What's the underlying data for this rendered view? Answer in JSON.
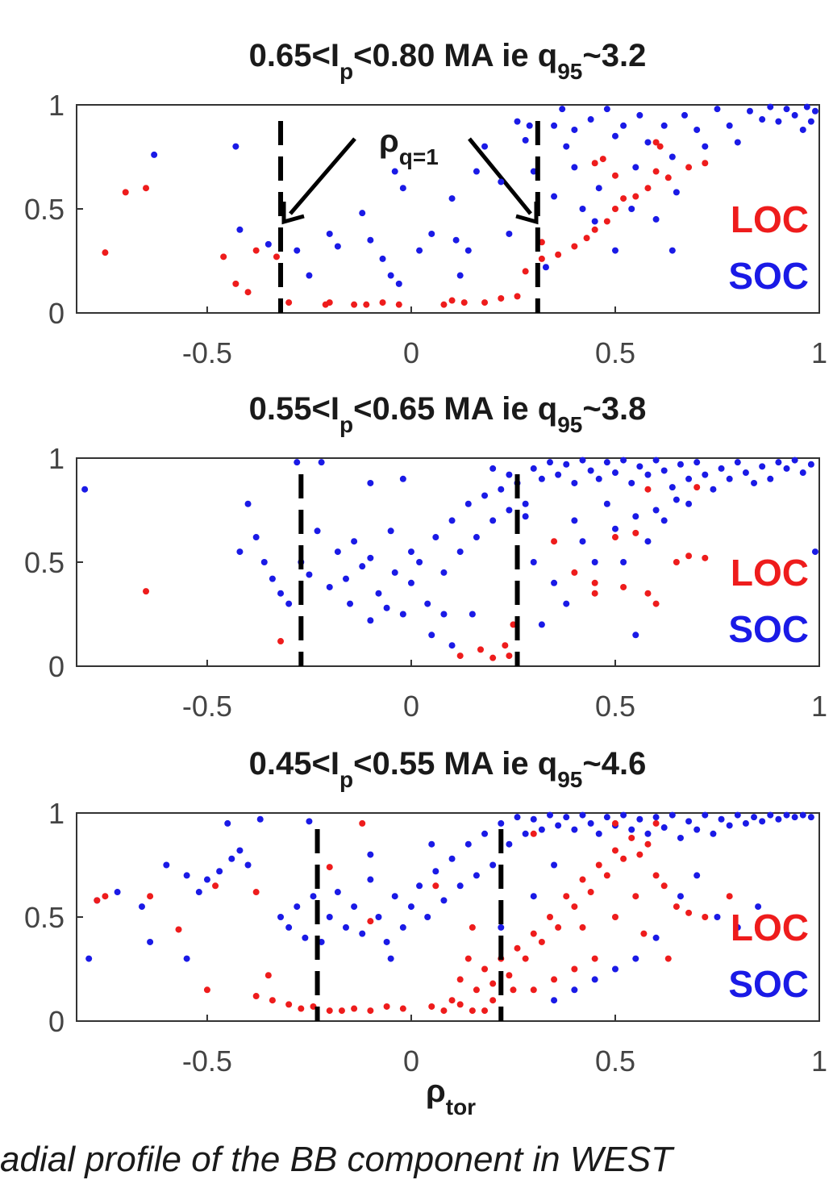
{
  "chart_data": [
    {
      "type": "scatter",
      "title": [
        {
          "text": "0.65<I"
        },
        {
          "text": "p",
          "sub": true
        },
        {
          "text": "<0.80 MA ie q"
        },
        {
          "text": "95",
          "sub": true
        },
        {
          "text": "~3.2"
        }
      ],
      "annotation": [
        {
          "text": "ρ"
        },
        {
          "text": "q=1",
          "sub": true
        }
      ],
      "xlim": [
        -0.82,
        1
      ],
      "ylim": [
        0,
        1
      ],
      "xticks": [
        -0.5,
        0,
        0.5,
        1
      ],
      "yticks": [
        0,
        0.5,
        1
      ],
      "legend": "right",
      "vlines": [
        -0.32,
        0.31
      ],
      "series": [
        {
          "name": "LOC",
          "color": "#ee1c1c",
          "x": [
            -0.75,
            -0.7,
            -0.65,
            -0.46,
            -0.43,
            -0.4,
            -0.38,
            -0.33,
            -0.3,
            -0.2,
            -0.21,
            -0.14,
            -0.11,
            -0.07,
            -0.03,
            0.08,
            0.1,
            0.13,
            0.18,
            0.22,
            0.26,
            0.28,
            0.32,
            0.36,
            0.4,
            0.43,
            0.45,
            0.48,
            0.5,
            0.52,
            0.55,
            0.58,
            0.45,
            0.47,
            0.5,
            0.6,
            0.63,
            0.68,
            0.72,
            0.6,
            0.61,
            0.32
          ],
          "y": [
            0.29,
            0.58,
            0.6,
            0.27,
            0.14,
            0.1,
            0.3,
            0.27,
            0.05,
            0.05,
            0.04,
            0.04,
            0.04,
            0.05,
            0.04,
            0.04,
            0.06,
            0.05,
            0.05,
            0.07,
            0.08,
            0.2,
            0.26,
            0.28,
            0.32,
            0.36,
            0.4,
            0.44,
            0.5,
            0.55,
            0.56,
            0.6,
            0.72,
            0.74,
            0.66,
            0.68,
            0.65,
            0.7,
            0.72,
            0.82,
            0.8,
            0.34
          ]
        },
        {
          "name": "SOC",
          "color": "#1a1ae6",
          "x": [
            -0.63,
            -0.43,
            -0.42,
            -0.35,
            -0.28,
            -0.25,
            -0.2,
            -0.18,
            -0.12,
            -0.1,
            -0.07,
            -0.05,
            -0.03,
            -0.02,
            -0.04,
            0.02,
            0.05,
            0.1,
            0.11,
            0.12,
            0.14,
            0.16,
            0.18,
            0.22,
            0.24,
            0.26,
            0.28,
            0.3,
            0.33,
            0.35,
            0.35,
            0.37,
            0.38,
            0.4,
            0.4,
            0.42,
            0.44,
            0.46,
            0.48,
            0.5,
            0.52,
            0.54,
            0.55,
            0.56,
            0.58,
            0.6,
            0.62,
            0.64,
            0.65,
            0.67,
            0.7,
            0.72,
            0.75,
            0.78,
            0.8,
            0.83,
            0.86,
            0.88,
            0.9,
            0.92,
            0.94,
            0.96,
            0.97,
            0.98,
            0.99,
            0.64,
            0.5,
            0.45,
            0.29
          ],
          "y": [
            0.76,
            0.8,
            0.4,
            0.33,
            0.3,
            0.18,
            0.38,
            0.32,
            0.48,
            0.35,
            0.26,
            0.18,
            0.14,
            0.6,
            0.68,
            0.3,
            0.38,
            0.55,
            0.35,
            0.18,
            0.3,
            0.68,
            0.8,
            0.63,
            0.38,
            0.92,
            0.83,
            0.68,
            0.22,
            0.56,
            0.9,
            0.98,
            0.8,
            0.7,
            0.88,
            0.5,
            0.93,
            0.6,
            0.98,
            0.85,
            0.9,
            0.5,
            0.7,
            0.95,
            0.82,
            0.45,
            0.9,
            0.75,
            0.58,
            0.95,
            0.88,
            0.8,
            0.98,
            0.9,
            0.82,
            0.97,
            0.93,
            0.99,
            0.92,
            0.98,
            0.95,
            0.88,
            0.99,
            0.92,
            0.97,
            0.3,
            0.3,
            0.44,
            0.9
          ]
        }
      ]
    },
    {
      "type": "scatter",
      "title": [
        {
          "text": "0.55<I"
        },
        {
          "text": "p",
          "sub": true
        },
        {
          "text": "<0.65 MA ie q"
        },
        {
          "text": "95",
          "sub": true
        },
        {
          "text": "~3.8"
        }
      ],
      "xlim": [
        -0.82,
        1
      ],
      "ylim": [
        0,
        1
      ],
      "xticks": [
        -0.5,
        0,
        0.5,
        1
      ],
      "yticks": [
        0,
        0.5,
        1
      ],
      "legend": "right",
      "vlines": [
        -0.27,
        0.26
      ],
      "series": [
        {
          "name": "LOC",
          "color": "#ee1c1c",
          "x": [
            -0.65,
            -0.32,
            0.12,
            0.17,
            0.2,
            0.23,
            0.25,
            0.24,
            0.35,
            0.4,
            0.45,
            0.5,
            0.55,
            0.6,
            0.65,
            0.68,
            0.72,
            0.58,
            0.52,
            0.58,
            0.45,
            0.7
          ],
          "y": [
            0.36,
            0.12,
            0.05,
            0.08,
            0.04,
            0.1,
            0.2,
            0.05,
            0.6,
            0.45,
            0.4,
            0.62,
            0.64,
            0.3,
            0.5,
            0.53,
            0.52,
            0.35,
            0.38,
            0.85,
            0.35,
            0.86
          ]
        },
        {
          "name": "SOC",
          "color": "#1a1ae6",
          "x": [
            -0.8,
            -0.42,
            -0.4,
            -0.38,
            -0.36,
            -0.34,
            -0.32,
            -0.3,
            -0.28,
            -0.27,
            -0.25,
            -0.23,
            -0.2,
            -0.18,
            -0.16,
            -0.14,
            -0.12,
            -0.1,
            -0.08,
            -0.06,
            -0.04,
            -0.02,
            0,
            0.02,
            0.04,
            0.06,
            0.08,
            0.1,
            0.12,
            0.14,
            0.16,
            0.18,
            0.2,
            0.22,
            0.24,
            0.26,
            0.28,
            0.3,
            0.32,
            0.34,
            0.36,
            0.38,
            0.4,
            0.42,
            0.44,
            0.46,
            0.48,
            0.5,
            0.52,
            0.54,
            0.56,
            0.58,
            0.6,
            0.62,
            0.64,
            0.66,
            0.68,
            0.7,
            0.72,
            0.74,
            0.76,
            0.78,
            0.8,
            0.82,
            0.84,
            0.86,
            0.88,
            0.9,
            0.92,
            0.94,
            0.96,
            0.98,
            0.99,
            0.4,
            0.42,
            0.45,
            0.48,
            0.5,
            0.52,
            0.55,
            0.58,
            0.6,
            0.62,
            0.65,
            0.68,
            0.55,
            0.38,
            0.3,
            0.32,
            0.35,
            0.05,
            0.1,
            0.15,
            -0.1,
            -0.15,
            0.28,
            0.24,
            -0.05,
            0,
            0.08,
            -0.22,
            -0.1,
            0.2,
            -0.02
          ],
          "y": [
            0.85,
            0.55,
            0.78,
            0.62,
            0.5,
            0.42,
            0.35,
            0.3,
            0.98,
            0.5,
            0.44,
            0.65,
            0.38,
            0.55,
            0.42,
            0.6,
            0.48,
            0.52,
            0.35,
            0.28,
            0.45,
            0.25,
            0.4,
            0.5,
            0.3,
            0.62,
            0.45,
            0.7,
            0.55,
            0.78,
            0.62,
            0.82,
            0.7,
            0.85,
            0.75,
            0.88,
            0.72,
            0.95,
            0.9,
            0.98,
            0.92,
            0.97,
            0.88,
            0.99,
            0.94,
            0.9,
            0.98,
            0.93,
            0.99,
            0.88,
            0.96,
            0.92,
            0.99,
            0.94,
            0.86,
            0.97,
            0.9,
            0.98,
            0.92,
            0.85,
            0.95,
            0.9,
            0.98,
            0.93,
            0.88,
            0.96,
            0.9,
            0.98,
            0.95,
            0.99,
            0.93,
            0.97,
            0.55,
            0.7,
            0.6,
            0.5,
            0.78,
            0.66,
            0.5,
            0.72,
            0.6,
            0.75,
            0.7,
            0.8,
            0.78,
            0.15,
            0.3,
            0.5,
            0.2,
            0.4,
            0.15,
            0.1,
            0.25,
            0.22,
            0.3,
            0.78,
            0.92,
            0.65,
            0.55,
            0.25,
            0.98,
            0.88,
            0.95,
            0.9
          ]
        }
      ]
    },
    {
      "type": "scatter",
      "title": [
        {
          "text": "0.45<I"
        },
        {
          "text": "p",
          "sub": true
        },
        {
          "text": "<0.55 MA ie q"
        },
        {
          "text": "95",
          "sub": true
        },
        {
          "text": "~4.6"
        }
      ],
      "xlabel": [
        {
          "text": "ρ"
        },
        {
          "text": "tor",
          "sub": true
        }
      ],
      "xlim": [
        -0.82,
        1
      ],
      "ylim": [
        0,
        1
      ],
      "xticks": [
        -0.5,
        0,
        0.5,
        1
      ],
      "yticks": [
        0,
        0.5,
        1
      ],
      "legend": "right",
      "vlines": [
        -0.23,
        0.22
      ],
      "series": [
        {
          "name": "LOC",
          "color": "#ee1c1c",
          "x": [
            -0.77,
            -0.75,
            -0.64,
            -0.57,
            -0.5,
            -0.48,
            -0.38,
            -0.38,
            -0.35,
            -0.34,
            -0.3,
            -0.27,
            -0.24,
            -0.2,
            -0.17,
            -0.14,
            -0.1,
            -0.06,
            -0.02,
            -0.12,
            -0.2,
            0.05,
            0.08,
            0.1,
            0.12,
            0.12,
            0.14,
            0.16,
            0.18,
            0.2,
            0.22,
            0.24,
            0.26,
            0.28,
            0.3,
            0.32,
            0.34,
            0.36,
            0.38,
            0.4,
            0.42,
            0.44,
            0.46,
            0.48,
            0.5,
            0.52,
            0.54,
            0.56,
            0.58,
            0.6,
            0.62,
            0.65,
            0.68,
            0.72,
            0.63,
            0.57,
            0.45,
            0.4,
            0.35,
            0.3,
            0.55,
            0.5,
            0.42,
            0.15,
            0.06,
            -0.1,
            0.3,
            0.5,
            0.6,
            0.78,
            0.25,
            0.2,
            0.18,
            0.15
          ],
          "y": [
            0.58,
            0.6,
            0.6,
            0.44,
            0.15,
            0.65,
            0.12,
            0.62,
            0.22,
            0.1,
            0.08,
            0.06,
            0.07,
            0.05,
            0.05,
            0.06,
            0.05,
            0.07,
            0.06,
            0.95,
            0.74,
            0.07,
            0.05,
            0.1,
            0.08,
            0.2,
            0.3,
            0.15,
            0.25,
            0.18,
            0.3,
            0.22,
            0.35,
            0.3,
            0.42,
            0.38,
            0.5,
            0.45,
            0.6,
            0.55,
            0.68,
            0.62,
            0.75,
            0.7,
            0.82,
            0.78,
            0.88,
            0.8,
            0.85,
            0.7,
            0.65,
            0.55,
            0.52,
            0.5,
            0.3,
            0.42,
            0.3,
            0.25,
            0.2,
            0.15,
            0.6,
            0.5,
            0.45,
            0.45,
            0.65,
            0.48,
            0.9,
            0.95,
            0.95,
            0.6,
            0.15,
            0.1,
            0.05,
            0.05
          ]
        },
        {
          "name": "SOC",
          "color": "#1a1ae6",
          "x": [
            -0.79,
            -0.77,
            -0.72,
            -0.66,
            -0.64,
            -0.6,
            -0.55,
            -0.52,
            -0.5,
            -0.47,
            -0.44,
            -0.42,
            -0.4,
            -0.37,
            -0.32,
            -0.3,
            -0.28,
            -0.26,
            -0.24,
            -0.22,
            -0.2,
            -0.18,
            -0.16,
            -0.14,
            -0.12,
            -0.1,
            -0.08,
            -0.06,
            -0.04,
            -0.02,
            0,
            0.02,
            0.04,
            0.06,
            0.08,
            0.1,
            0.12,
            0.14,
            0.16,
            0.18,
            0.2,
            0.22,
            0.24,
            0.26,
            0.28,
            0.3,
            0.32,
            0.34,
            0.36,
            0.38,
            0.4,
            0.42,
            0.44,
            0.46,
            0.48,
            0.5,
            0.52,
            0.54,
            0.56,
            0.58,
            0.6,
            0.62,
            0.64,
            0.66,
            0.68,
            0.7,
            0.72,
            0.74,
            0.76,
            0.78,
            0.8,
            0.82,
            0.84,
            0.86,
            0.88,
            0.9,
            0.92,
            0.94,
            0.96,
            0.98,
            0.66,
            0.7,
            0.75,
            0.8,
            0.85,
            0.6,
            0.55,
            0.5,
            0.45,
            0.4,
            0.35,
            -0.55,
            -0.45,
            -0.25,
            -0.1,
            0.05,
            -0.05,
            0.22,
            0.3,
            0.35
          ],
          "y": [
            0.3,
            0.58,
            0.62,
            0.55,
            0.38,
            0.75,
            0.7,
            0.62,
            0.68,
            0.72,
            0.78,
            0.82,
            0.75,
            0.97,
            0.5,
            0.45,
            0.55,
            0.4,
            0.6,
            0.38,
            0.5,
            0.62,
            0.45,
            0.55,
            0.42,
            0.68,
            0.5,
            0.38,
            0.6,
            0.45,
            0.55,
            0.65,
            0.5,
            0.72,
            0.58,
            0.78,
            0.65,
            0.85,
            0.7,
            0.9,
            0.75,
            0.95,
            0.85,
            0.98,
            0.9,
            0.97,
            0.92,
            0.99,
            0.94,
            0.98,
            0.92,
            0.99,
            0.95,
            0.9,
            0.98,
            0.94,
            0.99,
            0.92,
            0.97,
            0.9,
            0.98,
            0.93,
            0.99,
            0.88,
            0.96,
            0.92,
            0.99,
            0.9,
            0.97,
            0.94,
            0.99,
            0.95,
            0.98,
            0.96,
            0.99,
            0.97,
            0.99,
            0.98,
            0.99,
            0.98,
            0.6,
            0.7,
            0.5,
            0.45,
            0.55,
            0.4,
            0.3,
            0.25,
            0.2,
            0.15,
            0.1,
            0.3,
            0.95,
            0.96,
            0.8,
            0.85,
            0.3,
            0.45,
            0.6,
            0.75
          ]
        }
      ]
    }
  ],
  "caption": "adial profile of the BB component in WEST"
}
